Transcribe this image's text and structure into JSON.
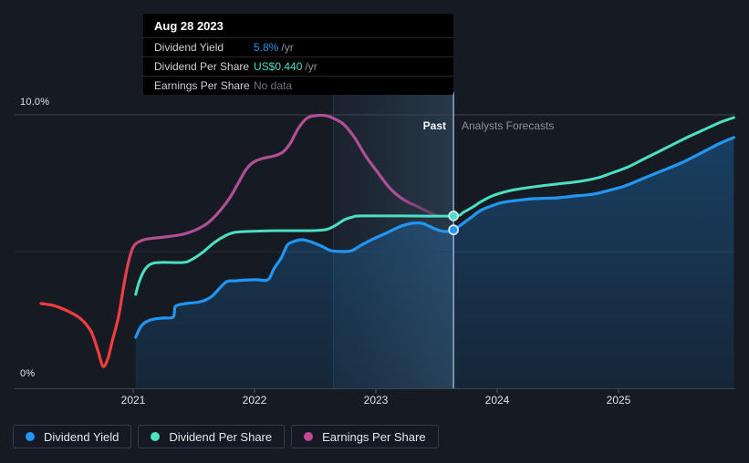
{
  "tooltip": {
    "date": "Aug 28 2023",
    "rows": [
      {
        "label": "Dividend Yield",
        "value": "5.8%",
        "suffix": "/yr",
        "value_color": "#2196f3"
      },
      {
        "label": "Dividend Per Share",
        "value": "US$0.440",
        "suffix": "/yr",
        "value_color": "#4ce0c3"
      },
      {
        "label": "Earnings Per Share",
        "value": "No data",
        "suffix": "",
        "value_color": "#6f747b"
      }
    ]
  },
  "legend": {
    "items": [
      {
        "label": "Dividend Yield",
        "color": "#2196f3"
      },
      {
        "label": "Dividend Per Share",
        "color": "#4be3c3"
      },
      {
        "label": "Earnings Per Share",
        "color": "#c04b92"
      }
    ]
  },
  "chart_data": {
    "type": "line",
    "title": "",
    "y_axis": {
      "top_label": "10.0%",
      "bottom_label": "0%",
      "range": [
        0,
        10
      ],
      "mid_gridline": 5
    },
    "x_axis": {
      "ticks": [
        2021,
        2022,
        2023,
        2024,
        2025
      ],
      "tick_labels": [
        "2021",
        "2022",
        "2023",
        "2024",
        "2025"
      ],
      "range": [
        2020.02,
        2025.95
      ]
    },
    "divider": {
      "x": 2023.64,
      "past_label": "Past",
      "forecast_label": "Analysts Forecasts"
    },
    "highlight_band": {
      "from": 2022.65,
      "to": 2023.64
    },
    "colors": {
      "dividend_yield": "#2196f3",
      "dividend_per_share": "#4ce0c3",
      "eps_high": "#b04f93",
      "eps_low": "#f23d3d",
      "divider_line": "rgba(172,205,232,0.8)"
    },
    "series": [
      {
        "name": "Earnings Per Share",
        "axis_note": "plotted on 0-10% canvas scale, no data after 2023.5",
        "points": [
          [
            2020.24,
            3.11
          ],
          [
            2020.34,
            3.04
          ],
          [
            2020.44,
            2.88
          ],
          [
            2020.56,
            2.58
          ],
          [
            2020.65,
            2.11
          ],
          [
            2020.71,
            1.38
          ],
          [
            2020.75,
            0.82
          ],
          [
            2020.79,
            1.08
          ],
          [
            2020.83,
            1.78
          ],
          [
            2020.88,
            2.64
          ],
          [
            2020.92,
            3.71
          ],
          [
            2020.96,
            4.61
          ],
          [
            2021.0,
            5.17
          ],
          [
            2021.05,
            5.37
          ],
          [
            2021.12,
            5.47
          ],
          [
            2021.26,
            5.54
          ],
          [
            2021.41,
            5.64
          ],
          [
            2021.52,
            5.81
          ],
          [
            2021.62,
            6.07
          ],
          [
            2021.71,
            6.47
          ],
          [
            2021.8,
            7.0
          ],
          [
            2021.87,
            7.54
          ],
          [
            2021.93,
            8.0
          ],
          [
            2021.99,
            8.27
          ],
          [
            2022.06,
            8.4
          ],
          [
            2022.16,
            8.5
          ],
          [
            2022.23,
            8.63
          ],
          [
            2022.29,
            8.93
          ],
          [
            2022.36,
            9.5
          ],
          [
            2022.43,
            9.87
          ],
          [
            2022.5,
            9.97
          ],
          [
            2022.59,
            9.97
          ],
          [
            2022.67,
            9.83
          ],
          [
            2022.74,
            9.63
          ],
          [
            2022.83,
            9.13
          ],
          [
            2022.92,
            8.47
          ],
          [
            2023.02,
            7.87
          ],
          [
            2023.12,
            7.3
          ],
          [
            2023.23,
            6.9
          ],
          [
            2023.35,
            6.64
          ],
          [
            2023.44,
            6.44
          ],
          [
            2023.5,
            6.34
          ]
        ]
      },
      {
        "name": "Dividend Per Share",
        "axis_note": "US$ scaled to canvas, hovered value US$0.440/yr",
        "points": [
          [
            2021.02,
            3.44
          ],
          [
            2021.05,
            3.91
          ],
          [
            2021.09,
            4.31
          ],
          [
            2021.14,
            4.54
          ],
          [
            2021.22,
            4.61
          ],
          [
            2021.41,
            4.61
          ],
          [
            2021.48,
            4.71
          ],
          [
            2021.57,
            4.97
          ],
          [
            2021.67,
            5.34
          ],
          [
            2021.77,
            5.61
          ],
          [
            2021.84,
            5.71
          ],
          [
            2021.93,
            5.74
          ],
          [
            2022.16,
            5.77
          ],
          [
            2022.46,
            5.77
          ],
          [
            2022.59,
            5.81
          ],
          [
            2022.67,
            5.97
          ],
          [
            2022.74,
            6.17
          ],
          [
            2022.81,
            6.27
          ],
          [
            2022.87,
            6.31
          ],
          [
            2023.21,
            6.31
          ],
          [
            2023.64,
            6.31
          ],
          [
            2023.72,
            6.44
          ],
          [
            2023.8,
            6.64
          ],
          [
            2023.87,
            6.84
          ],
          [
            2023.96,
            7.04
          ],
          [
            2024.05,
            7.17
          ],
          [
            2024.15,
            7.27
          ],
          [
            2024.3,
            7.37
          ],
          [
            2024.49,
            7.47
          ],
          [
            2024.68,
            7.57
          ],
          [
            2024.83,
            7.7
          ],
          [
            2024.94,
            7.87
          ],
          [
            2025.08,
            8.1
          ],
          [
            2025.2,
            8.37
          ],
          [
            2025.35,
            8.7
          ],
          [
            2025.53,
            9.1
          ],
          [
            2025.69,
            9.43
          ],
          [
            2025.84,
            9.73
          ],
          [
            2025.95,
            9.9
          ]
        ]
      },
      {
        "name": "Dividend Yield",
        "axis_note": "percent, hovered value 5.8%/yr",
        "area": true,
        "points": [
          [
            2021.02,
            1.88
          ],
          [
            2021.07,
            2.31
          ],
          [
            2021.14,
            2.51
          ],
          [
            2021.24,
            2.58
          ],
          [
            2021.33,
            2.62
          ],
          [
            2021.35,
            3.01
          ],
          [
            2021.44,
            3.11
          ],
          [
            2021.56,
            3.18
          ],
          [
            2021.65,
            3.38
          ],
          [
            2021.76,
            3.88
          ],
          [
            2021.84,
            3.94
          ],
          [
            2022.01,
            3.98
          ],
          [
            2022.11,
            3.98
          ],
          [
            2022.16,
            4.38
          ],
          [
            2022.22,
            4.78
          ],
          [
            2022.27,
            5.24
          ],
          [
            2022.32,
            5.37
          ],
          [
            2022.39,
            5.44
          ],
          [
            2022.46,
            5.37
          ],
          [
            2022.55,
            5.21
          ],
          [
            2022.63,
            5.04
          ],
          [
            2022.72,
            5.01
          ],
          [
            2022.8,
            5.04
          ],
          [
            2022.89,
            5.27
          ],
          [
            2022.98,
            5.47
          ],
          [
            2023.1,
            5.71
          ],
          [
            2023.21,
            5.94
          ],
          [
            2023.3,
            6.04
          ],
          [
            2023.38,
            6.04
          ],
          [
            2023.45,
            5.91
          ],
          [
            2023.53,
            5.77
          ],
          [
            2023.59,
            5.74
          ],
          [
            2023.64,
            5.8
          ],
          [
            2023.71,
            6.01
          ],
          [
            2023.79,
            6.27
          ],
          [
            2023.86,
            6.5
          ],
          [
            2023.95,
            6.67
          ],
          [
            2024.04,
            6.8
          ],
          [
            2024.15,
            6.87
          ],
          [
            2024.3,
            6.94
          ],
          [
            2024.49,
            6.97
          ],
          [
            2024.65,
            7.04
          ],
          [
            2024.79,
            7.1
          ],
          [
            2024.92,
            7.24
          ],
          [
            2025.05,
            7.4
          ],
          [
            2025.2,
            7.67
          ],
          [
            2025.35,
            7.94
          ],
          [
            2025.53,
            8.27
          ],
          [
            2025.69,
            8.63
          ],
          [
            2025.84,
            8.97
          ],
          [
            2025.95,
            9.17
          ]
        ]
      }
    ],
    "markers": [
      {
        "x": 2023.64,
        "y": 6.31,
        "color": "#4ce0c3"
      },
      {
        "x": 2023.64,
        "y": 5.8,
        "color": "#2196f3"
      }
    ]
  }
}
